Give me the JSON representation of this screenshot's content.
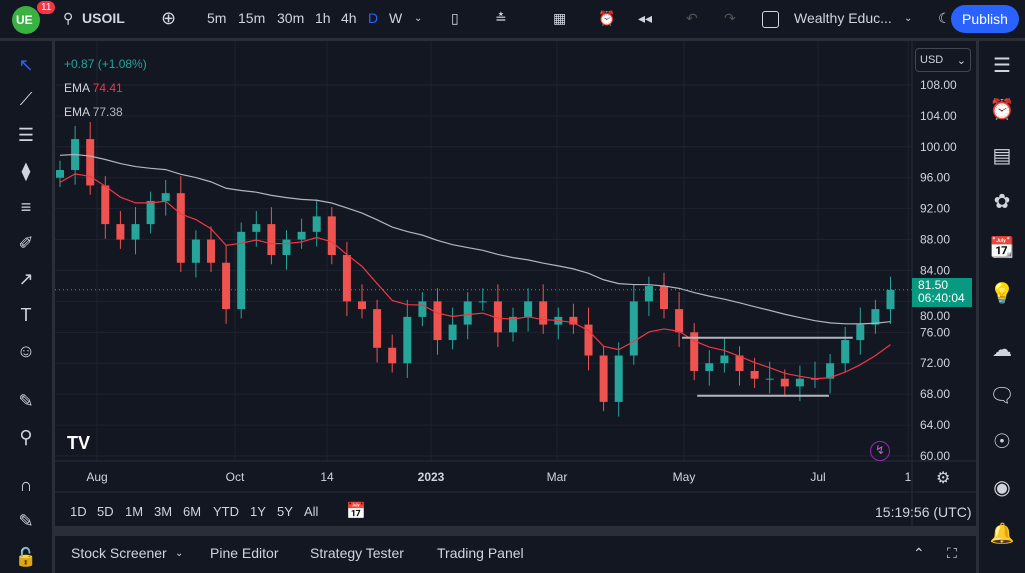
{
  "header": {
    "badge": "11",
    "symbol": "USOIL",
    "intervals": [
      "5m",
      "15m",
      "30m",
      "1h",
      "4h",
      "D",
      "W"
    ],
    "active_interval": "D",
    "layout_name": "Wealthy Educ...",
    "publish": "Publish"
  },
  "legend": {
    "change": "+0.87 (+1.08%)",
    "ema1_label": "EMA",
    "ema1_value": "74.41",
    "ema2_label": "EMA",
    "ema2_value": "77.38"
  },
  "price_axis": {
    "currency": "USD",
    "ticks": [
      "108.00",
      "104.00",
      "100.00",
      "96.00",
      "92.00",
      "88.00",
      "84.00",
      "80.00",
      "76.00",
      "72.00",
      "68.00",
      "64.00",
      "60.00"
    ],
    "last_price": "81.50",
    "countdown": "06:40:04"
  },
  "time_axis": {
    "ticks": [
      "Aug",
      "Oct",
      "14",
      "2023",
      "Mar",
      "May",
      "Jul",
      "1"
    ]
  },
  "ranges": [
    "1D",
    "5D",
    "1M",
    "3M",
    "6M",
    "YTD",
    "1Y",
    "5Y",
    "All"
  ],
  "clock": "15:19:56 (UTC)",
  "bottom_tabs": [
    "Stock Screener",
    "Pine Editor",
    "Strategy Tester",
    "Trading Panel"
  ],
  "colors": {
    "up": "#26a69a",
    "down": "#ef5350",
    "ema_fast": "#f23645",
    "ema_slow": "#b2b5be",
    "accent": "#2962ff",
    "bg": "#131722"
  },
  "chart_data": {
    "type": "candlestick",
    "x_start": "2022-07-14",
    "interval": "1W",
    "close": [
      97,
      101,
      95,
      90,
      88,
      90,
      93,
      94,
      85,
      88,
      85,
      79,
      89,
      90,
      86,
      88,
      89,
      91,
      86,
      80,
      79,
      74,
      72,
      78,
      80,
      75,
      77,
      80,
      80,
      76,
      78,
      80,
      77,
      78,
      77,
      73,
      67,
      73,
      80,
      82,
      79,
      76,
      71,
      72,
      73,
      71,
      70,
      70,
      69,
      70,
      70,
      72,
      75,
      77,
      79,
      81.5
    ],
    "ylim": [
      60,
      110
    ],
    "series": [
      {
        "indicator": "EMA",
        "last": 74.41,
        "color": "#f23645"
      },
      {
        "indicator": "EMA",
        "last": 77.38,
        "color": "#b2b5be"
      }
    ],
    "drawings": [
      {
        "type": "horizontal-segment",
        "price": 75.3,
        "from": "2023-04-28",
        "to": "2023-07-16"
      },
      {
        "type": "horizontal-segment",
        "price": 67.8,
        "from": "2023-05-05",
        "to": "2023-07-05"
      }
    ]
  }
}
